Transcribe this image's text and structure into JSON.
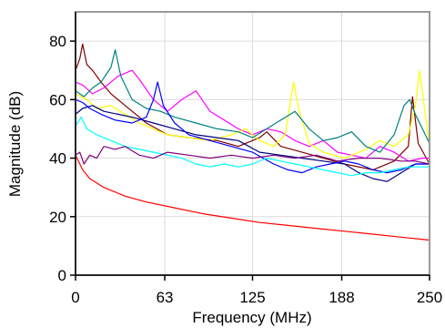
{
  "chart_data": {
    "type": "line",
    "title": "",
    "xlabel": "Frequency (MHz)",
    "ylabel": "Magnitude (dB)",
    "xlim": [
      0,
      250
    ],
    "ylim": [
      0,
      90
    ],
    "x_ticks": [
      {
        "value": 0,
        "label": "0"
      },
      {
        "value": 63,
        "label": "63"
      },
      {
        "value": 125,
        "label": "125"
      },
      {
        "value": 188,
        "label": "188"
      },
      {
        "value": 250,
        "label": "250"
      }
    ],
    "y_ticks": [
      {
        "value": 0,
        "label": "0"
      },
      {
        "value": 20,
        "label": "20"
      },
      {
        "value": 40,
        "label": "40"
      },
      {
        "value": 60,
        "label": "60"
      },
      {
        "value": 80,
        "label": "80"
      }
    ],
    "grid": true,
    "legend": "none",
    "series": [
      {
        "color": "#ff0000",
        "values": [
          [
            0,
            41
          ],
          [
            5,
            36
          ],
          [
            10,
            33
          ],
          [
            20,
            30
          ],
          [
            35,
            27
          ],
          [
            50,
            25
          ],
          [
            70,
            23
          ],
          [
            90,
            21
          ],
          [
            110,
            19.5
          ],
          [
            130,
            18
          ],
          [
            150,
            17
          ],
          [
            170,
            16
          ],
          [
            190,
            15
          ],
          [
            210,
            14
          ],
          [
            230,
            13
          ],
          [
            250,
            12
          ]
        ]
      },
      {
        "color": "#7f0000",
        "values": [
          [
            0,
            70
          ],
          [
            3,
            74
          ],
          [
            5,
            79
          ],
          [
            8,
            72
          ],
          [
            12,
            70
          ],
          [
            18,
            66
          ],
          [
            25,
            62
          ],
          [
            35,
            58
          ],
          [
            50,
            52
          ],
          [
            65,
            48
          ],
          [
            80,
            47
          ],
          [
            100,
            46
          ],
          [
            115,
            44
          ],
          [
            130,
            47
          ],
          [
            135,
            49
          ],
          [
            145,
            44
          ],
          [
            160,
            42
          ],
          [
            175,
            40
          ],
          [
            190,
            38
          ],
          [
            210,
            36
          ],
          [
            225,
            39
          ],
          [
            235,
            44
          ],
          [
            238,
            61
          ],
          [
            242,
            45
          ],
          [
            250,
            38
          ]
        ]
      },
      {
        "color": "#ff00ff",
        "values": [
          [
            0,
            66
          ],
          [
            5,
            65
          ],
          [
            12,
            62
          ],
          [
            20,
            64
          ],
          [
            30,
            68
          ],
          [
            40,
            70
          ],
          [
            45,
            67
          ],
          [
            55,
            60
          ],
          [
            65,
            56
          ],
          [
            75,
            60
          ],
          [
            85,
            63
          ],
          [
            95,
            56
          ],
          [
            105,
            53
          ],
          [
            115,
            50
          ],
          [
            125,
            48
          ],
          [
            135,
            50
          ],
          [
            145,
            49
          ],
          [
            155,
            46
          ],
          [
            165,
            44
          ],
          [
            175,
            46
          ],
          [
            185,
            42
          ],
          [
            195,
            41
          ],
          [
            205,
            40
          ],
          [
            215,
            44
          ],
          [
            225,
            42
          ],
          [
            235,
            39
          ],
          [
            245,
            40
          ],
          [
            250,
            40
          ]
        ]
      },
      {
        "color": "#ffff00",
        "values": [
          [
            0,
            62
          ],
          [
            8,
            60
          ],
          [
            15,
            57
          ],
          [
            25,
            58
          ],
          [
            35,
            55
          ],
          [
            45,
            52
          ],
          [
            55,
            50
          ],
          [
            65,
            48
          ],
          [
            80,
            47
          ],
          [
            95,
            46
          ],
          [
            110,
            48
          ],
          [
            120,
            50
          ],
          [
            130,
            46
          ],
          [
            140,
            44
          ],
          [
            148,
            48
          ],
          [
            152,
            60
          ],
          [
            154,
            66
          ],
          [
            158,
            56
          ],
          [
            165,
            45
          ],
          [
            175,
            42
          ],
          [
            190,
            40
          ],
          [
            205,
            43
          ],
          [
            215,
            46
          ],
          [
            225,
            44
          ],
          [
            235,
            48
          ],
          [
            240,
            58
          ],
          [
            243,
            70
          ],
          [
            247,
            55
          ],
          [
            250,
            44
          ]
        ]
      },
      {
        "color": "#007f7f",
        "values": [
          [
            0,
            63
          ],
          [
            6,
            61
          ],
          [
            12,
            64
          ],
          [
            18,
            66
          ],
          [
            25,
            71
          ],
          [
            28,
            77
          ],
          [
            32,
            68
          ],
          [
            40,
            60
          ],
          [
            50,
            57
          ],
          [
            60,
            56
          ],
          [
            70,
            54
          ],
          [
            85,
            52
          ],
          [
            100,
            50
          ],
          [
            115,
            49
          ],
          [
            125,
            47
          ],
          [
            135,
            50
          ],
          [
            145,
            53
          ],
          [
            155,
            56
          ],
          [
            165,
            50
          ],
          [
            175,
            46
          ],
          [
            185,
            47
          ],
          [
            195,
            49
          ],
          [
            205,
            44
          ],
          [
            215,
            42
          ],
          [
            225,
            48
          ],
          [
            232,
            58
          ],
          [
            236,
            60
          ],
          [
            240,
            55
          ],
          [
            245,
            50
          ],
          [
            250,
            45
          ]
        ]
      },
      {
        "color": "#00007f",
        "values": [
          [
            0,
            55
          ],
          [
            5,
            57
          ],
          [
            12,
            58
          ],
          [
            20,
            56
          ],
          [
            30,
            55
          ],
          [
            40,
            54
          ],
          [
            55,
            52
          ],
          [
            70,
            50
          ],
          [
            85,
            48
          ],
          [
            100,
            47
          ],
          [
            115,
            46
          ],
          [
            130,
            42
          ],
          [
            145,
            41
          ],
          [
            160,
            40
          ],
          [
            175,
            39
          ],
          [
            190,
            38
          ],
          [
            200,
            35
          ],
          [
            210,
            33
          ],
          [
            220,
            32
          ],
          [
            230,
            35
          ],
          [
            240,
            38
          ],
          [
            250,
            38
          ]
        ]
      },
      {
        "color": "#0000ff",
        "values": [
          [
            0,
            60
          ],
          [
            5,
            59
          ],
          [
            10,
            57
          ],
          [
            18,
            55
          ],
          [
            28,
            53
          ],
          [
            40,
            52
          ],
          [
            50,
            54
          ],
          [
            55,
            60
          ],
          [
            58,
            66
          ],
          [
            62,
            58
          ],
          [
            70,
            52
          ],
          [
            80,
            48
          ],
          [
            95,
            46
          ],
          [
            110,
            44
          ],
          [
            125,
            42
          ],
          [
            140,
            38
          ],
          [
            150,
            36
          ],
          [
            160,
            35
          ],
          [
            170,
            37
          ],
          [
            180,
            38
          ],
          [
            190,
            39
          ],
          [
            200,
            38
          ],
          [
            210,
            36
          ],
          [
            220,
            35
          ],
          [
            230,
            36
          ],
          [
            240,
            38
          ],
          [
            250,
            38
          ]
        ]
      },
      {
        "color": "#00ffff",
        "values": [
          [
            0,
            51
          ],
          [
            4,
            54
          ],
          [
            8,
            50
          ],
          [
            15,
            48
          ],
          [
            25,
            46
          ],
          [
            35,
            44
          ],
          [
            45,
            43
          ],
          [
            55,
            42
          ],
          [
            65,
            41
          ],
          [
            75,
            40
          ],
          [
            85,
            38
          ],
          [
            95,
            37
          ],
          [
            105,
            38
          ],
          [
            115,
            37
          ],
          [
            125,
            38
          ],
          [
            135,
            40
          ],
          [
            145,
            39
          ],
          [
            155,
            38
          ],
          [
            165,
            37
          ],
          [
            175,
            36
          ],
          [
            185,
            35
          ],
          [
            195,
            34
          ],
          [
            205,
            35
          ],
          [
            215,
            35
          ],
          [
            225,
            36
          ],
          [
            235,
            37
          ],
          [
            245,
            37
          ],
          [
            250,
            37
          ]
        ]
      },
      {
        "color": "#7f007f",
        "values": [
          [
            0,
            41
          ],
          [
            3,
            42
          ],
          [
            6,
            38
          ],
          [
            10,
            41
          ],
          [
            15,
            40
          ],
          [
            20,
            44
          ],
          [
            28,
            43
          ],
          [
            35,
            44
          ],
          [
            45,
            41
          ],
          [
            55,
            40
          ],
          [
            65,
            42
          ],
          [
            80,
            41
          ],
          [
            95,
            40
          ],
          [
            110,
            41
          ],
          [
            125,
            40
          ],
          [
            140,
            41
          ],
          [
            155,
            40
          ],
          [
            170,
            41
          ],
          [
            185,
            39
          ],
          [
            200,
            40
          ],
          [
            215,
            40
          ],
          [
            230,
            39
          ],
          [
            240,
            39
          ],
          [
            250,
            38
          ]
        ]
      }
    ]
  }
}
